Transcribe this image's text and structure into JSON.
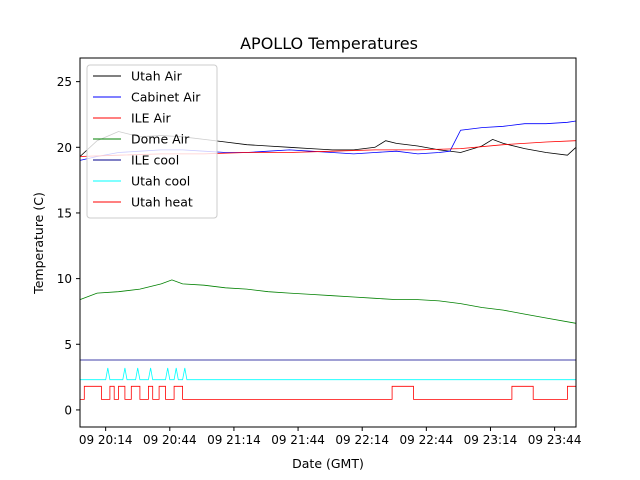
{
  "chart_data": {
    "type": "line",
    "title": "APOLLO Temperatures",
    "xlabel": "Date (GMT)",
    "ylabel": "Temperature (C)",
    "xlim": [
      "20:02",
      "23:54"
    ],
    "ylim": [
      -1.3,
      26.8
    ],
    "grid": false,
    "legend_position": "upper-left",
    "x_ticks": [
      {
        "t": "20:14",
        "label": "09 20:14"
      },
      {
        "t": "20:44",
        "label": "09 20:44"
      },
      {
        "t": "21:14",
        "label": "09 21:14"
      },
      {
        "t": "21:44",
        "label": "09 21:44"
      },
      {
        "t": "22:14",
        "label": "09 22:14"
      },
      {
        "t": "22:44",
        "label": "09 22:44"
      },
      {
        "t": "23:14",
        "label": "09 23:14"
      },
      {
        "t": "23:44",
        "label": "09 23:44"
      }
    ],
    "y_ticks": [
      0,
      5,
      10,
      15,
      20,
      25
    ],
    "series": [
      {
        "name": "Utah Air",
        "color": "#000000",
        "x": [
          "20:02",
          "20:10",
          "20:20",
          "20:30",
          "20:40",
          "20:50",
          "21:00",
          "21:10",
          "21:20",
          "21:30",
          "21:40",
          "21:50",
          "22:00",
          "22:10",
          "22:20",
          "22:25",
          "22:30",
          "22:40",
          "22:50",
          "23:00",
          "23:10",
          "23:15",
          "23:20",
          "23:30",
          "23:40",
          "23:50",
          "23:54"
        ],
        "y": [
          19.3,
          20.5,
          21.2,
          20.8,
          20.9,
          20.8,
          20.6,
          20.4,
          20.2,
          20.1,
          20.0,
          19.9,
          19.8,
          19.8,
          20.0,
          20.5,
          20.3,
          20.1,
          19.8,
          19.6,
          20.1,
          20.6,
          20.3,
          19.9,
          19.6,
          19.4,
          20.0
        ]
      },
      {
        "name": "Cabinet Air",
        "color": "#0000ff",
        "x": [
          "20:02",
          "20:10",
          "20:20",
          "20:30",
          "20:40",
          "20:50",
          "21:00",
          "21:10",
          "21:20",
          "21:30",
          "21:40",
          "21:50",
          "22:00",
          "22:10",
          "22:20",
          "22:30",
          "22:40",
          "22:50",
          "22:55",
          "23:00",
          "23:10",
          "23:20",
          "23:30",
          "23:40",
          "23:50",
          "23:54"
        ],
        "y": [
          19.0,
          19.3,
          19.6,
          19.7,
          19.8,
          19.8,
          19.7,
          19.6,
          19.6,
          19.7,
          19.8,
          19.7,
          19.6,
          19.5,
          19.6,
          19.7,
          19.5,
          19.6,
          19.7,
          21.3,
          21.5,
          21.6,
          21.8,
          21.8,
          21.9,
          22.0
        ]
      },
      {
        "name": "ILE Air",
        "color": "#ff0000",
        "x": [
          "20:02",
          "20:20",
          "20:40",
          "21:00",
          "21:20",
          "21:40",
          "22:00",
          "22:20",
          "22:40",
          "23:00",
          "23:20",
          "23:40",
          "23:54"
        ],
        "y": [
          19.3,
          19.4,
          19.5,
          19.5,
          19.6,
          19.6,
          19.7,
          19.8,
          19.8,
          19.9,
          20.2,
          20.4,
          20.5
        ]
      },
      {
        "name": "Dome Air",
        "color": "#008000",
        "x": [
          "20:02",
          "20:10",
          "20:20",
          "20:30",
          "20:40",
          "20:45",
          "20:50",
          "21:00",
          "21:10",
          "21:20",
          "21:30",
          "21:40",
          "21:50",
          "22:00",
          "22:10",
          "22:20",
          "22:30",
          "22:40",
          "22:50",
          "23:00",
          "23:10",
          "23:20",
          "23:30",
          "23:40",
          "23:54"
        ],
        "y": [
          8.4,
          8.9,
          9.0,
          9.2,
          9.6,
          9.9,
          9.6,
          9.5,
          9.3,
          9.2,
          9.0,
          8.9,
          8.8,
          8.7,
          8.6,
          8.5,
          8.4,
          8.4,
          8.3,
          8.1,
          7.8,
          7.6,
          7.3,
          7.0,
          6.6
        ]
      },
      {
        "name": "ILE cool",
        "color": "#00008b",
        "x": [
          "20:02",
          "23:54"
        ],
        "y": [
          3.8,
          3.8
        ]
      },
      {
        "name": "Utah cool",
        "color": "#00ffff",
        "x": [
          "20:02",
          "20:14",
          "20:15",
          "20:16",
          "20:22",
          "20:23",
          "20:24",
          "20:28",
          "20:29",
          "20:30",
          "20:34",
          "20:35",
          "20:36",
          "20:42",
          "20:43",
          "20:44",
          "20:46",
          "20:47",
          "20:48",
          "20:50",
          "20:51",
          "20:52",
          "23:54"
        ],
        "y": [
          2.3,
          2.3,
          3.2,
          2.3,
          2.3,
          3.2,
          2.3,
          2.3,
          3.2,
          2.3,
          2.3,
          3.2,
          2.3,
          2.3,
          3.2,
          2.3,
          2.3,
          3.2,
          2.3,
          2.3,
          3.2,
          2.3,
          2.3
        ]
      },
      {
        "name": "Utah heat",
        "color": "#ff0000",
        "x": [
          "20:02",
          "20:04",
          "20:04",
          "20:12",
          "20:12",
          "20:16",
          "20:16",
          "20:18",
          "20:18",
          "20:20",
          "20:20",
          "20:23",
          "20:23",
          "20:26",
          "20:26",
          "20:30",
          "20:30",
          "20:34",
          "20:34",
          "20:36",
          "20:36",
          "20:39",
          "20:39",
          "20:42",
          "20:42",
          "20:46",
          "20:46",
          "20:50",
          "20:50",
          "22:28",
          "22:28",
          "22:38",
          "22:38",
          "23:24",
          "23:24",
          "23:34",
          "23:34",
          "23:50",
          "23:50",
          "23:54"
        ],
        "y": [
          0.8,
          0.8,
          1.8,
          1.8,
          0.8,
          0.8,
          1.8,
          1.8,
          0.8,
          0.8,
          1.8,
          1.8,
          0.8,
          0.8,
          1.8,
          1.8,
          0.8,
          0.8,
          1.8,
          1.8,
          0.8,
          0.8,
          1.8,
          1.8,
          0.8,
          0.8,
          1.8,
          1.8,
          0.8,
          0.8,
          1.8,
          1.8,
          0.8,
          0.8,
          1.8,
          1.8,
          0.8,
          0.8,
          1.8,
          1.8
        ]
      }
    ]
  }
}
